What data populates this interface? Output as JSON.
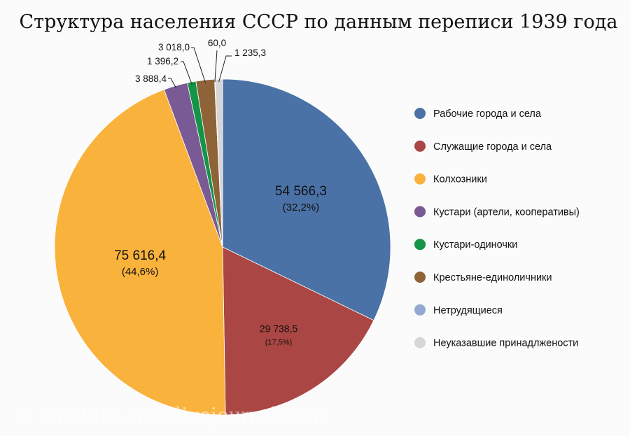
{
  "chart_data": {
    "type": "pie",
    "title": "Структура населения СССР по данным переписи 1939 года",
    "start_angle_deg": 0,
    "direction": "clockwise",
    "legend_position": "right",
    "slices": [
      {
        "name": "Рабочие города и села",
        "value": 54566.3,
        "value_label": "54 566,3",
        "percent_label": "(32,2%)",
        "color": "#4a72a6"
      },
      {
        "name": "Служащие города и села",
        "value": 29738.5,
        "value_label": "29 738,5",
        "percent_label": "(17,5%)",
        "color": "#aa4643"
      },
      {
        "name": "Колхозники",
        "value": 75616.4,
        "value_label": "75 616,4",
        "percent_label": "(44,6%)",
        "color": "#f9b23c"
      },
      {
        "name": "Кустари (артели, кооперативы)",
        "value": 3888.4,
        "value_label": "3 888,4",
        "percent_label": "",
        "color": "#7a5a94"
      },
      {
        "name": "Кустари-одиночки",
        "value": 1396.2,
        "value_label": "1 396,2",
        "percent_label": "",
        "color": "#149447"
      },
      {
        "name": "Крестьяне-единоличники",
        "value": 3018.0,
        "value_label": "3 018,0",
        "percent_label": "",
        "color": "#8e6338"
      },
      {
        "name": "Нетрудящиеся",
        "value": 60.0,
        "value_label": "60,0",
        "percent_label": "",
        "color": "#93a9d2"
      },
      {
        "name": "Неуказавшие принадлжености",
        "value": 1235.3,
        "value_label": "1 235,3",
        "percent_label": "",
        "color": "#d6d6d6"
      }
    ]
  },
  "watermark": "© burckina-new.livejournal.com"
}
